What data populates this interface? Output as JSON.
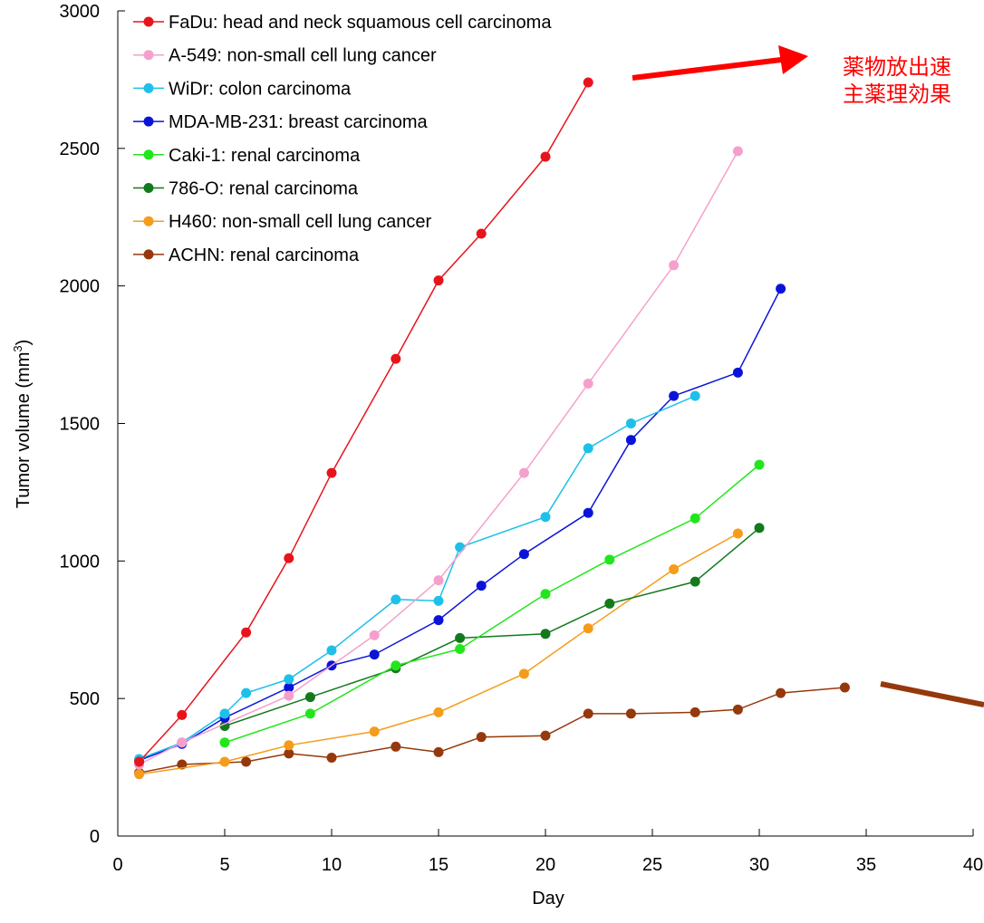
{
  "chart_data": {
    "type": "line",
    "title": "",
    "xlabel": "Day",
    "ylabel": "Tumor volume (mm³)",
    "ylabel_main": "Tumor volume (mm",
    "ylabel_sup": "3",
    "ylabel_end": ")",
    "xlim": [
      0,
      40
    ],
    "ylim": [
      0,
      3000
    ],
    "x_ticks": [
      0,
      5,
      10,
      15,
      20,
      25,
      30,
      35,
      40
    ],
    "x_tick_labels": [
      "0",
      "5",
      "10",
      "15",
      "20",
      "25",
      "30",
      "35",
      "40"
    ],
    "y_ticks": [
      0,
      500,
      1000,
      1500,
      2000,
      2500,
      3000
    ],
    "y_tick_labels": [
      "0",
      "500",
      "1000",
      "1500",
      "2000",
      "2500",
      "3000"
    ],
    "grid": false,
    "legend_position": "top-left",
    "series": [
      {
        "name": "FaDu: head and neck squamous cell carcinoma",
        "color": "#e8141b",
        "x": [
          1,
          3,
          6,
          8,
          10,
          13,
          15,
          17,
          20,
          22
        ],
        "y": [
          270,
          440,
          740,
          1010,
          1320,
          1735,
          2020,
          2190,
          2470,
          2740
        ]
      },
      {
        "name": "A-549: non-small cell lung cancer",
        "color": "#f5a0cc",
        "x": [
          1,
          3,
          8,
          12,
          15,
          19,
          22,
          26,
          29
        ],
        "y": [
          260,
          340,
          510,
          730,
          930,
          1320,
          1645,
          2075,
          2490
        ]
      },
      {
        "name": "WiDr: colon carcinoma",
        "color": "#1ec0ea",
        "x": [
          1,
          3,
          5,
          6,
          8,
          10,
          13,
          15,
          16,
          20,
          22,
          24,
          27
        ],
        "y": [
          280,
          340,
          445,
          520,
          570,
          675,
          860,
          855,
          1050,
          1160,
          1410,
          1500,
          1600
        ]
      },
      {
        "name": "MDA-MB-231: breast carcinoma",
        "color": "#0a14d8",
        "x": [
          1,
          3,
          5,
          8,
          10,
          12,
          15,
          17,
          19,
          22,
          24,
          26,
          29,
          31
        ],
        "y": [
          275,
          335,
          430,
          540,
          620,
          660,
          785,
          910,
          1025,
          1175,
          1440,
          1600,
          1685,
          1990
        ]
      },
      {
        "name": "Caki-1: renal carcinoma",
        "color": "#22e61c",
        "x": [
          5,
          9,
          13,
          16,
          20,
          23,
          27,
          30
        ],
        "y": [
          340,
          445,
          620,
          680,
          880,
          1005,
          1155,
          1350
        ]
      },
      {
        "name": "786-O: renal carcinoma",
        "color": "#137a1c",
        "x": [
          5,
          9,
          13,
          16,
          20,
          23,
          27,
          30
        ],
        "y": [
          400,
          505,
          610,
          720,
          735,
          845,
          925,
          1120
        ]
      },
      {
        "name": "H460: non-small cell lung cancer",
        "color": "#f59c1a",
        "x": [
          1,
          5,
          8,
          12,
          15,
          19,
          22,
          26,
          29
        ],
        "y": [
          225,
          270,
          330,
          380,
          450,
          590,
          755,
          970,
          1100
        ]
      },
      {
        "name": "ACHN: renal carcinoma",
        "color": "#95380c",
        "x": [
          1,
          3,
          6,
          8,
          10,
          13,
          15,
          17,
          20,
          22,
          24,
          27,
          29,
          31,
          34
        ],
        "y": [
          230,
          260,
          270,
          300,
          285,
          325,
          305,
          360,
          365,
          445,
          445,
          450,
          460,
          520,
          540
        ]
      }
    ],
    "annotations": [
      {
        "text_line1": "薬物放出速",
        "text_line2": "主薬理効果",
        "color": "#ff0000"
      }
    ]
  }
}
